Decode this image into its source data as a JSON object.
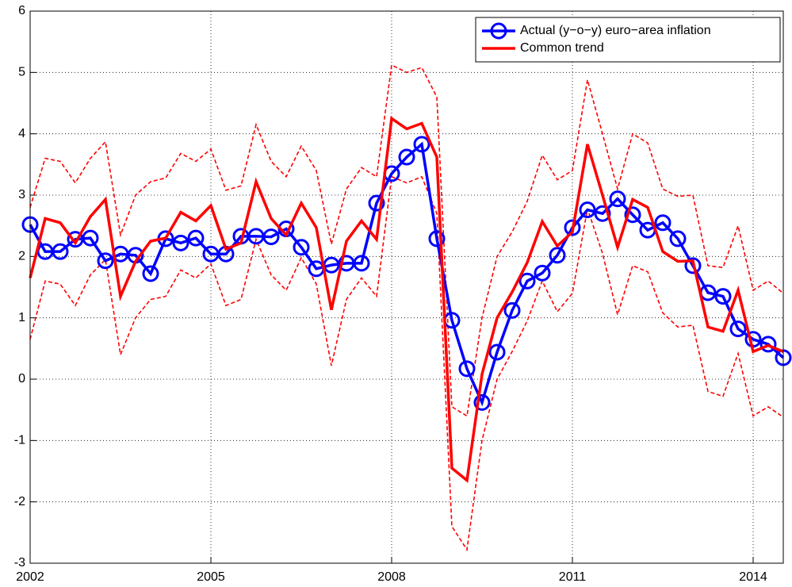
{
  "chart_data": {
    "type": "line",
    "x": [
      2002,
      2002.25,
      2002.5,
      2002.75,
      2003,
      2003.25,
      2003.5,
      2003.75,
      2004,
      2004.25,
      2004.5,
      2004.75,
      2005,
      2005.25,
      2005.5,
      2005.75,
      2006,
      2006.25,
      2006.5,
      2006.75,
      2007,
      2007.25,
      2007.5,
      2007.75,
      2008,
      2008.25,
      2008.5,
      2008.75,
      2009,
      2009.25,
      2009.5,
      2009.75,
      2010,
      2010.25,
      2010.5,
      2010.75,
      2011,
      2011.25,
      2011.5,
      2011.75,
      2012,
      2012.25,
      2012.5,
      2012.75,
      2013,
      2013.25,
      2013.5,
      2013.75,
      2014,
      2014.25,
      2014.5
    ],
    "series": [
      {
        "name": "Actual (y−o−y) euro−area inflation",
        "color": "#0000ff",
        "marker": "circle",
        "values": [
          2.52,
          2.08,
          2.08,
          2.28,
          2.3,
          1.93,
          2.04,
          2.02,
          1.72,
          2.29,
          2.22,
          2.3,
          2.04,
          2.04,
          2.33,
          2.33,
          2.32,
          2.45,
          2.15,
          1.8,
          1.86,
          1.89,
          1.89,
          2.87,
          3.35,
          3.62,
          3.83,
          2.29,
          0.96,
          0.17,
          -0.38,
          0.44,
          1.12,
          1.6,
          1.73,
          2.02,
          2.47,
          2.76,
          2.7,
          2.94,
          2.68,
          2.43,
          2.55,
          2.29,
          1.85,
          1.41,
          1.35,
          0.82,
          0.65,
          0.57,
          0.35
        ]
      },
      {
        "name": "Common trend",
        "color": "#ff0000",
        "values": [
          1.65,
          2.62,
          2.55,
          2.22,
          2.65,
          2.93,
          1.35,
          1.92,
          2.25,
          2.3,
          2.72,
          2.58,
          2.83,
          2.12,
          2.22,
          3.22,
          2.62,
          2.35,
          2.87,
          2.47,
          1.13,
          2.25,
          2.58,
          2.28,
          4.25,
          4.08,
          4.17,
          3.62,
          -1.45,
          -1.65,
          0.08,
          1.0,
          1.42,
          1.9,
          2.57,
          2.17,
          2.4,
          3.83,
          3.0,
          2.15,
          2.93,
          2.8,
          2.08,
          1.92,
          1.93,
          0.85,
          0.78,
          1.45,
          0.45,
          0.55,
          0.45
        ]
      },
      {
        "color": "#ff0000",
        "dashed": true,
        "values": [
          2.8,
          3.6,
          3.55,
          3.2,
          3.6,
          3.87,
          2.35,
          3.0,
          3.22,
          3.28,
          3.68,
          3.55,
          3.75,
          3.08,
          3.15,
          4.15,
          3.55,
          3.3,
          3.8,
          3.4,
          2.2,
          3.1,
          3.45,
          3.3,
          5.12,
          5.0,
          5.08,
          4.6,
          -0.45,
          -0.6,
          1.0,
          2.0,
          2.4,
          2.9,
          3.65,
          3.25,
          3.4,
          4.88,
          4.0,
          3.1,
          4.0,
          3.85,
          3.1,
          2.98,
          3.0,
          1.85,
          1.82,
          2.5,
          1.45,
          1.6,
          1.4
        ]
      },
      {
        "color": "#ff0000",
        "dashed": true,
        "values": [
          0.65,
          1.6,
          1.55,
          1.2,
          1.7,
          1.95,
          0.4,
          1.0,
          1.3,
          1.35,
          1.78,
          1.65,
          1.88,
          1.2,
          1.3,
          2.28,
          1.7,
          1.45,
          1.98,
          1.55,
          0.22,
          1.3,
          1.65,
          1.35,
          3.3,
          3.2,
          3.3,
          2.7,
          -2.4,
          -2.78,
          -1.0,
          0.0,
          0.45,
          0.95,
          1.6,
          1.1,
          1.4,
          2.78,
          2.05,
          1.05,
          1.85,
          1.75,
          1.08,
          0.85,
          0.88,
          -0.2,
          -0.28,
          0.42,
          -0.6,
          -0.45,
          -0.62
        ]
      }
    ],
    "xlim": [
      2002,
      2014.5
    ],
    "xticks": [
      2002,
      2005,
      2008,
      2011,
      2014
    ],
    "ylim": [
      -3,
      6
    ],
    "yticks": [
      -3,
      -2,
      -1,
      0,
      1,
      2,
      3,
      4,
      5,
      6
    ],
    "grid": true,
    "legend": "top-right"
  }
}
